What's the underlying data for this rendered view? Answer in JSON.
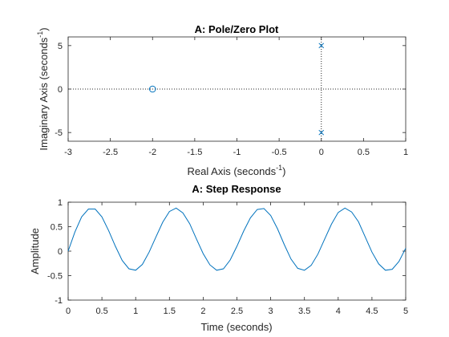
{
  "figure_background": "#ffffff",
  "series_color": "#0072bd",
  "chart_data": [
    {
      "type": "scatter",
      "title": "A: Pole/Zero Plot",
      "xlabel": {
        "text": "Real Axis (seconds",
        "superscript": "-1",
        "closing": ")"
      },
      "ylabel": {
        "text": "Imaginary Axis (seconds",
        "superscript": "-1",
        "closing": ")"
      },
      "xlim": [
        -3,
        1
      ],
      "ylim": [
        -6,
        6
      ],
      "xticks": [
        "-3",
        "-2.5",
        "-2",
        "-1.5",
        "-1",
        "-0.5",
        "0",
        "0.5",
        "1"
      ],
      "yticks": [
        "-5",
        "0",
        "5"
      ],
      "grid": false,
      "legend": "none",
      "zeros": [
        {
          "x": -2,
          "y": 0
        }
      ],
      "poles": [
        {
          "x": 0,
          "y": 5
        },
        {
          "x": 0,
          "y": -5
        }
      ],
      "reference_lines": {
        "x": 0,
        "y": 0,
        "style": "dotted"
      }
    },
    {
      "type": "line",
      "title": "A: Step Response",
      "xlabel": "Time (seconds)",
      "ylabel": "Amplitude",
      "xlim": [
        0,
        5
      ],
      "ylim": [
        -1,
        1
      ],
      "xticks": [
        "0",
        "0.5",
        "1",
        "1.5",
        "2",
        "2.5",
        "3",
        "3.5",
        "4",
        "4.5",
        "5"
      ],
      "yticks": [
        "-1",
        "-0.5",
        "0",
        "0.5",
        "1"
      ],
      "grid": false,
      "legend": "none",
      "series": [
        {
          "x": [
            0,
            0.1,
            0.2,
            0.3,
            0.4,
            0.5,
            0.6,
            0.7,
            0.8,
            0.9,
            1.0,
            1.1,
            1.2,
            1.3,
            1.4,
            1.5,
            1.6,
            1.7,
            1.8,
            1.9,
            2.0,
            2.1,
            2.2,
            2.3,
            2.4,
            2.5,
            2.6,
            2.7,
            2.8,
            2.9,
            3.0,
            3.1,
            3.2,
            3.3,
            3.4,
            3.5,
            3.6,
            3.7,
            3.8,
            3.9,
            4.0,
            4.1,
            4.2,
            4.3,
            4.4,
            4.5,
            4.6,
            4.7,
            4.8,
            4.9,
            5.0
          ],
          "y": [
            0,
            0.39,
            0.7,
            0.86,
            0.86,
            0.7,
            0.42,
            0.1,
            -0.19,
            -0.36,
            -0.39,
            -0.27,
            -0.02,
            0.29,
            0.59,
            0.81,
            0.88,
            0.78,
            0.56,
            0.25,
            -0.05,
            -0.28,
            -0.39,
            -0.36,
            -0.18,
            0.1,
            0.41,
            0.68,
            0.85,
            0.87,
            0.73,
            0.46,
            0.14,
            -0.16,
            -0.35,
            -0.39,
            -0.29,
            -0.06,
            0.25,
            0.55,
            0.79,
            0.88,
            0.8,
            0.6,
            0.29,
            -0.02,
            -0.26,
            -0.39,
            -0.37,
            -0.21,
            0.06
          ]
        }
      ]
    }
  ]
}
